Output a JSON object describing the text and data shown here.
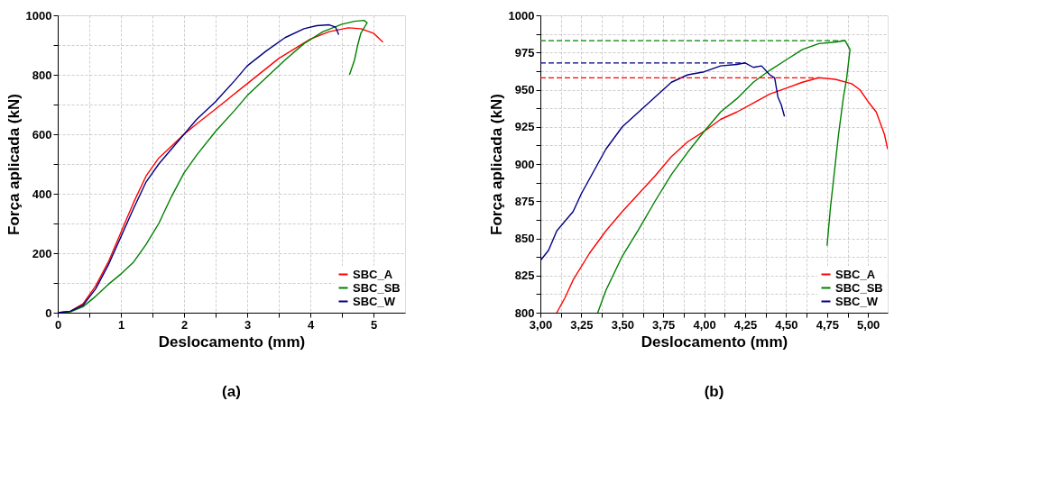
{
  "chart_data": [
    {
      "type": "line",
      "title": "(a)",
      "xlabel": "Deslocamento (mm)",
      "ylabel": "Força aplicada (kN)",
      "xlim": [
        0,
        5.5
      ],
      "ylim": [
        0,
        1000
      ],
      "xticks": [
        0,
        {
          "value": 0.5,
          "label": null
        },
        1,
        {
          "value": 1.5,
          "label": null
        },
        2,
        {
          "value": 2.5,
          "label": null
        },
        3,
        {
          "value": 3.5,
          "label": null
        },
        4,
        {
          "value": 4.5,
          "label": null
        },
        5
      ],
      "yticks": [
        0,
        {
          "value": 100,
          "label": null
        },
        200,
        {
          "value": 300,
          "label": null
        },
        400,
        {
          "value": 500,
          "label": null
        },
        600,
        {
          "value": 700,
          "label": null
        },
        800,
        {
          "value": 900,
          "label": null
        },
        1000
      ],
      "grid": true,
      "legend": "bottom right",
      "marker": "none",
      "line_style": "solid",
      "series": [
        {
          "name": "SBC_A",
          "color": "#ff0000",
          "x": [
            0,
            0.2,
            0.4,
            0.6,
            0.8,
            1.0,
            1.2,
            1.4,
            1.6,
            1.8,
            2.0,
            2.2,
            2.5,
            3.0,
            3.5,
            4.0,
            4.3,
            4.6,
            4.8,
            5.0,
            5.15
          ],
          "values": [
            0,
            5,
            30,
            90,
            170,
            270,
            370,
            460,
            520,
            560,
            600,
            635,
            685,
            770,
            855,
            920,
            945,
            958,
            955,
            940,
            910
          ]
        },
        {
          "name": "SBC_SB",
          "color": "#008000",
          "x": [
            0,
            0.2,
            0.4,
            0.6,
            0.8,
            1.0,
            1.2,
            1.4,
            1.6,
            1.8,
            2.0,
            2.2,
            2.5,
            2.8,
            3.0,
            3.3,
            3.6,
            3.9,
            4.2,
            4.5,
            4.7,
            4.85,
            4.9,
            4.8,
            4.75,
            4.7,
            4.62
          ],
          "values": [
            0,
            3,
            20,
            55,
            95,
            130,
            170,
            230,
            300,
            390,
            470,
            530,
            610,
            680,
            730,
            790,
            850,
            905,
            945,
            970,
            980,
            983,
            975,
            940,
            900,
            850,
            800
          ]
        },
        {
          "name": "SBC_W",
          "color": "#000080",
          "x": [
            0,
            0.2,
            0.4,
            0.6,
            0.8,
            1.0,
            1.2,
            1.4,
            1.6,
            1.8,
            2.0,
            2.2,
            2.5,
            2.8,
            3.0,
            3.3,
            3.6,
            3.9,
            4.1,
            4.3,
            4.4,
            4.45
          ],
          "values": [
            0,
            5,
            25,
            80,
            160,
            255,
            350,
            440,
            500,
            550,
            600,
            650,
            710,
            780,
            830,
            880,
            925,
            955,
            965,
            968,
            960,
            935
          ]
        }
      ]
    },
    {
      "type": "line",
      "title": "(b)",
      "xlabel": "Deslocamento (mm)",
      "ylabel": "Força aplicada (kN)",
      "xlim": [
        3,
        5.12
      ],
      "ylim": [
        800,
        1000
      ],
      "xticks": [
        {
          "value": 3,
          "label": "3,00"
        },
        {
          "value": 3.125,
          "label": null
        },
        {
          "value": 3.25,
          "label": "3,25"
        },
        {
          "value": 3.375,
          "label": null
        },
        {
          "value": 3.5,
          "label": "3,50"
        },
        {
          "value": 3.625,
          "label": null
        },
        {
          "value": 3.75,
          "label": "3,75"
        },
        {
          "value": 3.875,
          "label": null
        },
        {
          "value": 4,
          "label": "4,00"
        },
        {
          "value": 4.125,
          "label": null
        },
        {
          "value": 4.25,
          "label": "4,25"
        },
        {
          "value": 4.375,
          "label": null
        },
        {
          "value": 4.5,
          "label": "4,50"
        },
        {
          "value": 4.625,
          "label": null
        },
        {
          "value": 4.75,
          "label": "4,75"
        },
        {
          "value": 4.875,
          "label": null
        },
        {
          "value": 5,
          "label": "5,00"
        }
      ],
      "yticks": [
        800,
        {
          "value": 812.5,
          "label": null
        },
        825,
        {
          "value": 837.5,
          "label": null
        },
        850,
        {
          "value": 862.5,
          "label": null
        },
        875,
        {
          "value": 887.5,
          "label": null
        },
        900,
        {
          "value": 912.5,
          "label": null
        },
        925,
        {
          "value": 937.5,
          "label": null
        },
        950,
        {
          "value": 962.5,
          "label": null
        },
        975,
        {
          "value": 987.5,
          "label": null
        },
        1000
      ],
      "grid": true,
      "legend": "bottom right",
      "marker": "none",
      "line_style": "solid",
      "ref_lines": [
        {
          "axis": "y",
          "value": 983,
          "color": "#008000",
          "line_style": "dashed"
        },
        {
          "axis": "y",
          "value": 968,
          "color": "#000080",
          "line_style": "dashed"
        },
        {
          "axis": "y",
          "value": 958,
          "color": "#ff0000",
          "line_style": "dashed"
        }
      ],
      "series": [
        {
          "name": "SBC_A",
          "color": "#ff0000",
          "x": [
            3.1,
            3.15,
            3.2,
            3.3,
            3.4,
            3.5,
            3.6,
            3.7,
            3.8,
            3.9,
            4.0,
            4.1,
            4.2,
            4.3,
            4.4,
            4.5,
            4.6,
            4.7,
            4.8,
            4.9,
            4.95,
            5.0,
            5.05,
            5.1,
            5.12
          ],
          "values": [
            800,
            810,
            822,
            840,
            855,
            868,
            880,
            892,
            905,
            915,
            922,
            930,
            935,
            941,
            947,
            951,
            955,
            958,
            957,
            954,
            950,
            942,
            935,
            920,
            910
          ]
        },
        {
          "name": "SBC_SB",
          "color": "#008000",
          "x": [
            3.35,
            3.4,
            3.5,
            3.6,
            3.7,
            3.8,
            3.9,
            4.0,
            4.1,
            4.2,
            4.3,
            4.4,
            4.5,
            4.6,
            4.7,
            4.8,
            4.86,
            4.89,
            4.87,
            4.85,
            4.82,
            4.8,
            4.77,
            4.75
          ],
          "values": [
            800,
            815,
            838,
            856,
            875,
            893,
            908,
            922,
            935,
            944,
            955,
            963,
            970,
            977,
            981,
            982,
            983,
            977,
            958,
            945,
            920,
            900,
            870,
            845
          ]
        },
        {
          "name": "SBC_W",
          "color": "#000080",
          "x": [
            3.0,
            3.05,
            3.1,
            3.2,
            3.25,
            3.3,
            3.35,
            3.4,
            3.5,
            3.6,
            3.7,
            3.75,
            3.8,
            3.9,
            4.0,
            4.1,
            4.2,
            4.25,
            4.3,
            4.35,
            4.4,
            4.43,
            4.45,
            4.47,
            4.49
          ],
          "values": [
            835,
            842,
            855,
            868,
            880,
            890,
            900,
            910,
            925,
            935,
            945,
            950,
            955,
            960,
            962,
            966,
            967,
            968,
            965,
            966,
            960,
            958,
            945,
            940,
            932
          ]
        }
      ]
    }
  ]
}
